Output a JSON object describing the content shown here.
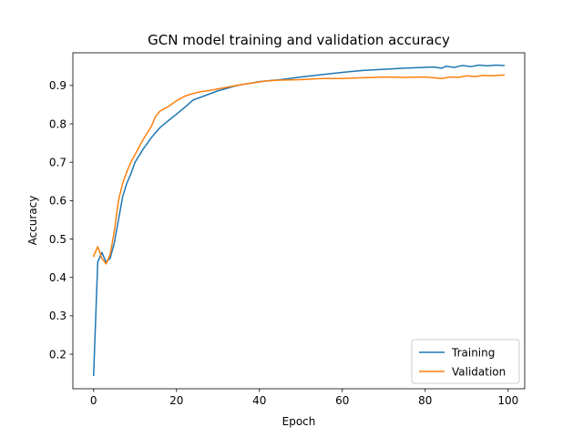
{
  "chart_data": {
    "type": "line",
    "title": "GCN model training and validation accuracy",
    "xlabel": "Epoch",
    "ylabel": "Accuracy",
    "xlim": [
      -5,
      104
    ],
    "ylim": [
      0.11,
      0.985
    ],
    "xticks": [
      0,
      20,
      40,
      60,
      80,
      100
    ],
    "yticks": [
      0.2,
      0.3,
      0.4,
      0.5,
      0.6,
      0.7,
      0.8,
      0.9
    ],
    "grid": false,
    "legend_position": "lower-right",
    "series": [
      {
        "name": "Training",
        "color": "#1f77b4",
        "points": [
          [
            0,
            0.145
          ],
          [
            1,
            0.44
          ],
          [
            2,
            0.465
          ],
          [
            3,
            0.44
          ],
          [
            4,
            0.45
          ],
          [
            5,
            0.49
          ],
          [
            6,
            0.55
          ],
          [
            7,
            0.61
          ],
          [
            8,
            0.645
          ],
          [
            9,
            0.67
          ],
          [
            10,
            0.7
          ],
          [
            12,
            0.735
          ],
          [
            14,
            0.765
          ],
          [
            16,
            0.79
          ],
          [
            18,
            0.808
          ],
          [
            20,
            0.825
          ],
          [
            22,
            0.843
          ],
          [
            24,
            0.862
          ],
          [
            26,
            0.87
          ],
          [
            28,
            0.878
          ],
          [
            30,
            0.886
          ],
          [
            32,
            0.892
          ],
          [
            34,
            0.898
          ],
          [
            36,
            0.903
          ],
          [
            38,
            0.906
          ],
          [
            40,
            0.91
          ],
          [
            45,
            0.915
          ],
          [
            50,
            0.922
          ],
          [
            55,
            0.928
          ],
          [
            60,
            0.934
          ],
          [
            65,
            0.939
          ],
          [
            70,
            0.942
          ],
          [
            75,
            0.945
          ],
          [
            80,
            0.947
          ],
          [
            82,
            0.948
          ],
          [
            84,
            0.945
          ],
          [
            85,
            0.95
          ],
          [
            87,
            0.947
          ],
          [
            89,
            0.952
          ],
          [
            91,
            0.949
          ],
          [
            93,
            0.953
          ],
          [
            95,
            0.951
          ],
          [
            97,
            0.953
          ],
          [
            99,
            0.952
          ]
        ]
      },
      {
        "name": "Validation",
        "color": "#ff7f0e",
        "points": [
          [
            0,
            0.455
          ],
          [
            1,
            0.48
          ],
          [
            2,
            0.45
          ],
          [
            3,
            0.435
          ],
          [
            4,
            0.46
          ],
          [
            5,
            0.52
          ],
          [
            6,
            0.6
          ],
          [
            7,
            0.645
          ],
          [
            8,
            0.675
          ],
          [
            9,
            0.7
          ],
          [
            10,
            0.72
          ],
          [
            12,
            0.76
          ],
          [
            14,
            0.795
          ],
          [
            15,
            0.82
          ],
          [
            16,
            0.833
          ],
          [
            18,
            0.845
          ],
          [
            20,
            0.86
          ],
          [
            22,
            0.872
          ],
          [
            24,
            0.879
          ],
          [
            26,
            0.884
          ],
          [
            28,
            0.887
          ],
          [
            30,
            0.891
          ],
          [
            32,
            0.895
          ],
          [
            34,
            0.899
          ],
          [
            36,
            0.903
          ],
          [
            38,
            0.906
          ],
          [
            40,
            0.909
          ],
          [
            42,
            0.912
          ],
          [
            45,
            0.914
          ],
          [
            50,
            0.915
          ],
          [
            55,
            0.918
          ],
          [
            60,
            0.918
          ],
          [
            65,
            0.92
          ],
          [
            70,
            0.922
          ],
          [
            75,
            0.921
          ],
          [
            80,
            0.922
          ],
          [
            82,
            0.92
          ],
          [
            84,
            0.918
          ],
          [
            86,
            0.922
          ],
          [
            88,
            0.921
          ],
          [
            90,
            0.925
          ],
          [
            92,
            0.923
          ],
          [
            94,
            0.926
          ],
          [
            96,
            0.925
          ],
          [
            99,
            0.927
          ]
        ]
      }
    ]
  }
}
